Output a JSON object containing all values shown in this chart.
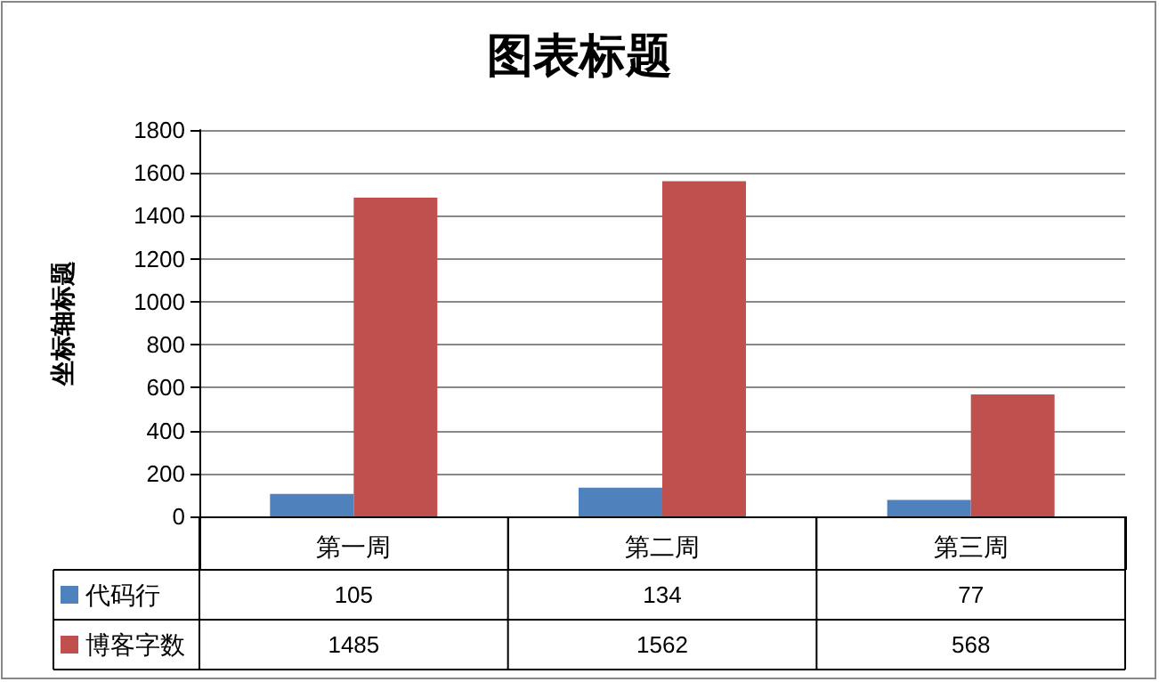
{
  "chart_data": {
    "type": "bar",
    "title": "图表标题",
    "ylabel": "坐标轴标题",
    "categories": [
      "第一周",
      "第二周",
      "第三周"
    ],
    "series": [
      {
        "name": "代码行",
        "color": "#4f81bd",
        "values": [
          105,
          134,
          77
        ]
      },
      {
        "name": "博客字数",
        "color": "#c0504d",
        "values": [
          1485,
          1562,
          568
        ]
      }
    ],
    "ylim": [
      0,
      1800
    ],
    "yticks": [
      0,
      200,
      400,
      600,
      800,
      1000,
      1200,
      1400,
      1600,
      1800
    ],
    "grid": "y",
    "legend": "bottom",
    "data_labels": true
  }
}
